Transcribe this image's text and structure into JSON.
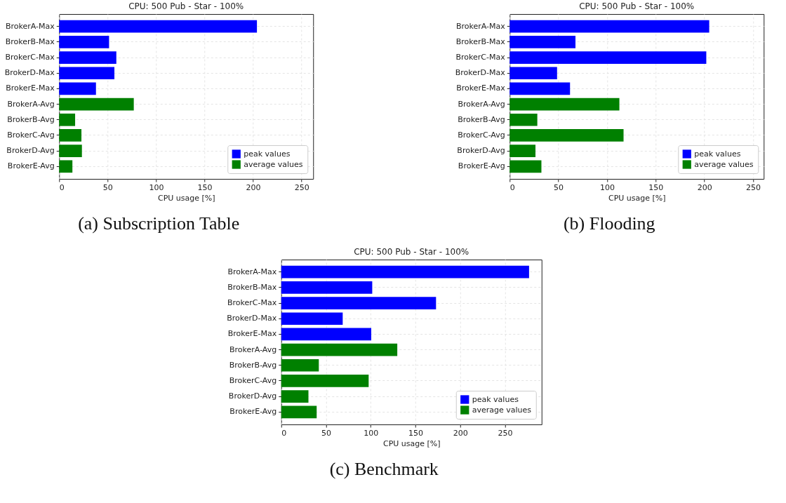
{
  "chart_data": [
    {
      "type": "bar",
      "orientation": "horizontal",
      "title": "CPU: 500 Pub - Star - 100%",
      "xlabel": "CPU usage [%]",
      "categories": [
        "BrokerA-Max",
        "BrokerB-Max",
        "BrokerC-Max",
        "BrokerD-Max",
        "BrokerE-Max",
        "BrokerA-Avg",
        "BrokerB-Avg",
        "BrokerC-Avg",
        "BrokerD-Avg",
        "BrokerE-Avg"
      ],
      "series": [
        {
          "name": "peak values",
          "color": "#0000ff",
          "values": [
            204,
            51.5,
            59,
            57,
            38,
            null,
            null,
            null,
            null,
            null
          ]
        },
        {
          "name": "average values",
          "color": "#008000",
          "values": [
            null,
            null,
            null,
            null,
            null,
            77,
            16.5,
            23,
            23.5,
            13.7
          ]
        }
      ],
      "xlim": [
        0,
        262
      ],
      "xticks": [
        0,
        50,
        100,
        150,
        200,
        250
      ],
      "grid": true,
      "legend": "bottom right",
      "annotations": [
        "(a) Subscription Table"
      ]
    },
    {
      "type": "bar",
      "orientation": "horizontal",
      "title": "CPU: 500 Pub - Star - 100%",
      "xlabel": "CPU usage [%]",
      "categories": [
        "BrokerA-Max",
        "BrokerB-Max",
        "BrokerC-Max",
        "BrokerD-Max",
        "BrokerE-Max",
        "BrokerA-Avg",
        "BrokerB-Avg",
        "BrokerC-Avg",
        "BrokerD-Avg",
        "BrokerE-Avg"
      ],
      "series": [
        {
          "name": "peak values",
          "color": "#0000ff",
          "values": [
            205,
            67.6,
            202,
            48.7,
            62,
            null,
            null,
            null,
            null,
            null
          ]
        },
        {
          "name": "average values",
          "color": "#008000",
          "values": [
            null,
            null,
            null,
            null,
            null,
            112.7,
            28.4,
            117,
            26.5,
            32.6
          ]
        }
      ],
      "xlim": [
        0,
        261
      ],
      "xticks": [
        0,
        50,
        100,
        150,
        200,
        250
      ],
      "grid": true,
      "legend": "bottom right",
      "annotations": [
        "(b) Flooding"
      ]
    },
    {
      "type": "bar",
      "orientation": "horizontal",
      "title": "CPU: 500 Pub - Star - 100%",
      "xlabel": "CPU usage [%]",
      "categories": [
        "BrokerA-Max",
        "BrokerB-Max",
        "BrokerC-Max",
        "BrokerD-Max",
        "BrokerE-Max",
        "BrokerA-Avg",
        "BrokerB-Avg",
        "BrokerC-Avg",
        "BrokerD-Avg",
        "BrokerE-Avg"
      ],
      "series": [
        {
          "name": "peak values",
          "color": "#0000ff",
          "values": [
            277,
            101.7,
            173,
            68.7,
            100.6,
            null,
            null,
            null,
            null,
            null
          ]
        },
        {
          "name": "average values",
          "color": "#008000",
          "values": [
            null,
            null,
            null,
            null,
            null,
            129.7,
            42,
            97.7,
            30.4,
            39.6
          ]
        }
      ],
      "xlim": [
        0,
        291
      ],
      "xticks": [
        0,
        50,
        100,
        150,
        200,
        250
      ],
      "grid": true,
      "legend": "bottom right",
      "annotations": [
        "(c) Benchmark"
      ]
    }
  ]
}
